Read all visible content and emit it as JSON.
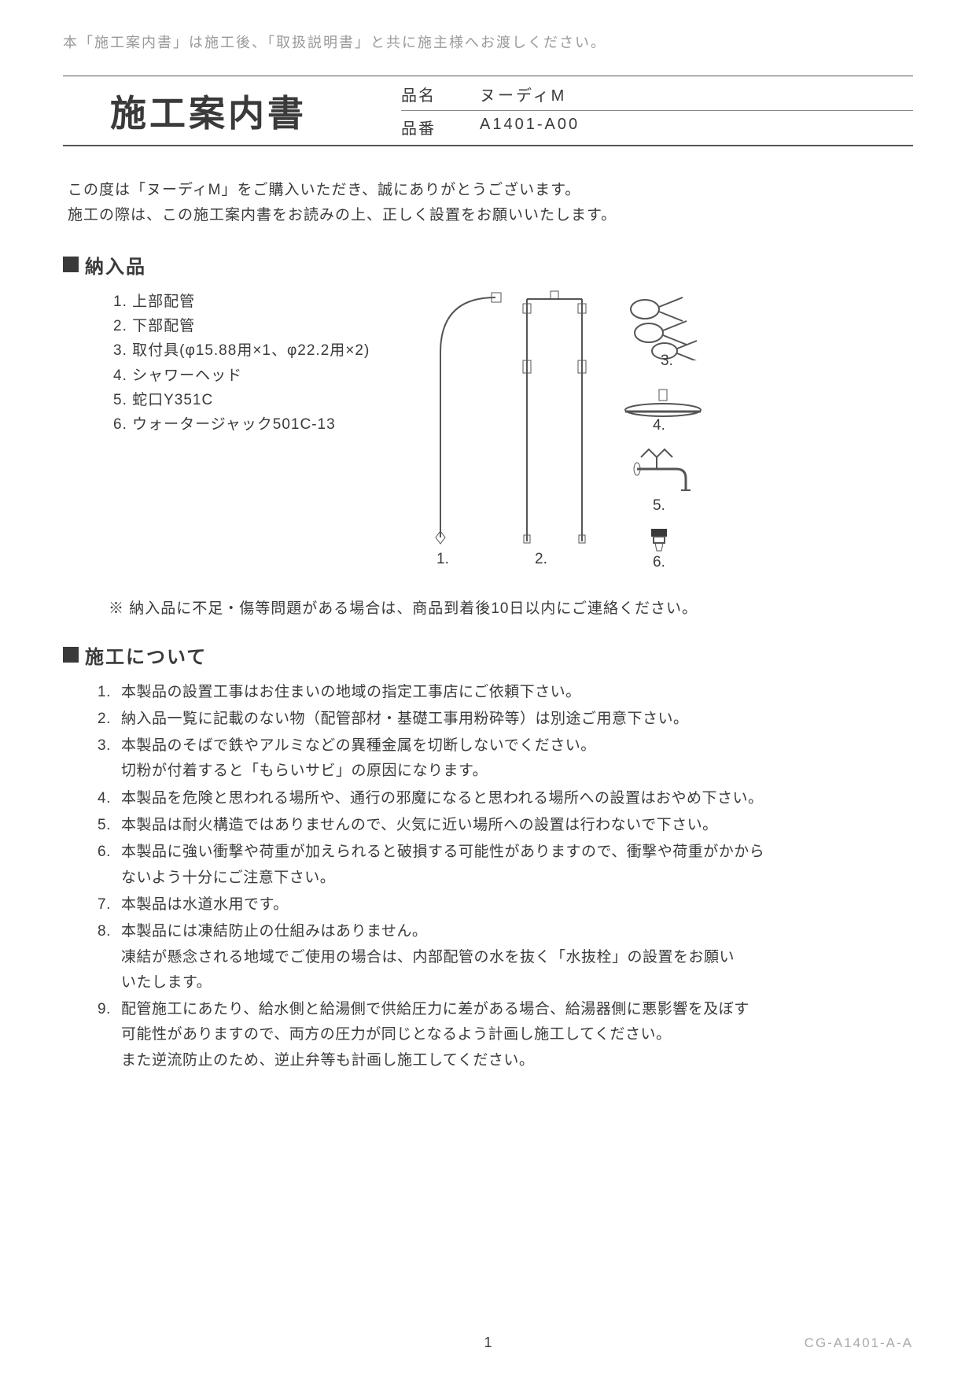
{
  "colors": {
    "text": "#3a3a3a",
    "muted": "#9a9a9a",
    "code": "#aaaaaa",
    "line": "#555555",
    "bg": "#ffffff"
  },
  "top_note": "本「施工案内書」は施工後、「取扱説明書」と共に施主様へお渡しください。",
  "title": "施工案内書",
  "product": {
    "name_label": "品名",
    "name_value": "ヌーディM",
    "code_label": "品番",
    "code_value": "A1401-A00"
  },
  "intro": {
    "line1": "この度は「ヌーディM」をご購入いただき、誠にありがとうございます。",
    "line2": "施工の際は、この施工案内書をお読みの上、正しく設置をお願いいたします。"
  },
  "delivery": {
    "heading": "納入品",
    "items": [
      "1. 上部配管",
      "2. 下部配管",
      "3. 取付具(φ15.88用×1、φ22.2用×2)",
      "4. シャワーヘッド",
      "5. 蛇口Y351C",
      "6. ウォータージャック501C-13"
    ],
    "diagram_labels": {
      "l1": "1.",
      "l2": "2.",
      "l3": "3.",
      "l4": "4.",
      "l5": "5.",
      "l6": "6."
    },
    "notice": "※ 納入品に不足・傷等問題がある場合は、商品到着後10日以内にご連絡ください。"
  },
  "construction": {
    "heading": "施工について",
    "items": [
      {
        "n": "1.",
        "t": "本製品の設置工事はお住まいの地域の指定工事店にご依頼下さい。"
      },
      {
        "n": "2.",
        "t": "納入品一覧に記載のない物（配管部材・基礎工事用粉砕等）は別途ご用意下さい。"
      },
      {
        "n": "3.",
        "t": "本製品のそばで鉄やアルミなどの異種金属を切断しないでください。\n切粉が付着すると「もらいサビ」の原因になります。"
      },
      {
        "n": "4.",
        "t": "本製品を危険と思われる場所や、通行の邪魔になると思われる場所への設置はおやめ下さい。"
      },
      {
        "n": "5.",
        "t": "本製品は耐火構造ではありませんので、火気に近い場所への設置は行わないで下さい。"
      },
      {
        "n": "6.",
        "t": "本製品に強い衝撃や荷重が加えられると破損する可能性がありますので、衝撃や荷重がかから\nないよう十分にご注意下さい。"
      },
      {
        "n": "7.",
        "t": "本製品は水道水用です。"
      },
      {
        "n": "8.",
        "t": "本製品には凍結防止の仕組みはありません。\n凍結が懸念される地域でご使用の場合は、内部配管の水を抜く「水抜栓」の設置をお願い\nいたします。"
      },
      {
        "n": "9.",
        "t": "配管施工にあたり、給水側と給湯側で供給圧力に差がある場合、給湯器側に悪影響を及ぼす\n可能性がありますので、両方の圧力が同じとなるよう計画し施工してください。\nまた逆流防止のため、逆止弁等も計画し施工してください。"
      }
    ]
  },
  "page_number": "1",
  "doc_code": "CG-A1401-A-A"
}
